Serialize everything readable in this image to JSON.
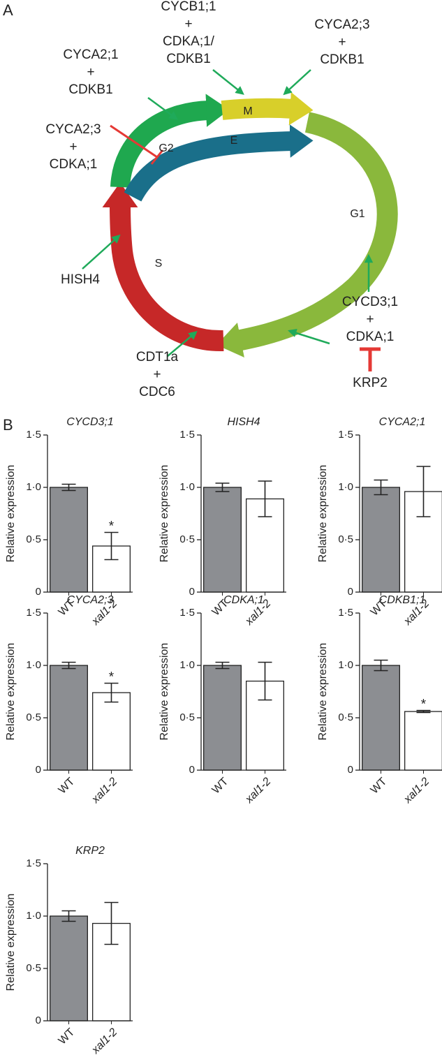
{
  "panel_a": {
    "label": "A",
    "phases": [
      "M",
      "E",
      "G2",
      "G1",
      "S"
    ],
    "labels": [
      {
        "lines": [
          "CYCB1;1",
          "+",
          "CDKA;1/",
          "CDKB1"
        ]
      },
      {
        "lines": [
          "CYCA2;3",
          "+",
          "CDKB1"
        ]
      },
      {
        "lines": [
          "CYCA2;1",
          "+",
          "CDKB1"
        ]
      },
      {
        "lines": [
          "CYCA2;3",
          "+",
          "CDKA;1"
        ]
      },
      {
        "lines": [
          "HISH4"
        ]
      },
      {
        "lines": [
          "CDT1a",
          "+",
          "CDC6"
        ]
      },
      {
        "lines": [
          "CYCD3;1",
          "+",
          "CDKA;1"
        ]
      },
      {
        "lines": [
          "KRP2"
        ]
      }
    ]
  },
  "panel_b": {
    "label": "B"
  },
  "chart_data": [
    {
      "type": "bar",
      "title": "CYCD3;1",
      "y_label": "Relative expression",
      "categories": [
        "WT",
        "xal1-2"
      ],
      "values": [
        1.0,
        0.44
      ],
      "errors": [
        0.03,
        0.13
      ],
      "markers": [
        null,
        "*"
      ],
      "colors": [
        "#8c8e92",
        "#ffffff"
      ],
      "ylim": [
        0,
        1.5
      ],
      "yticks": [
        0,
        {
          "value": 0.5,
          "label": "0·5"
        },
        {
          "value": 1.0,
          "label": "1·0"
        },
        {
          "value": 1.5,
          "label": "1·5"
        }
      ]
    },
    {
      "type": "bar",
      "title": "HISH4",
      "y_label": "Relative expression",
      "categories": [
        "WT",
        "xal1-2"
      ],
      "values": [
        1.0,
        0.89
      ],
      "errors": [
        0.04,
        0.17
      ],
      "markers": [
        null,
        null
      ],
      "colors": [
        "#8c8e92",
        "#ffffff"
      ],
      "ylim": [
        0,
        1.5
      ],
      "yticks": [
        0,
        {
          "value": 0.5,
          "label": "0·5"
        },
        {
          "value": 1.0,
          "label": "1·0"
        },
        {
          "value": 1.5,
          "label": "1·5"
        }
      ]
    },
    {
      "type": "bar",
      "title": "CYCA2;1",
      "y_label": "Relative expression",
      "categories": [
        "WT",
        "xal1-2"
      ],
      "values": [
        1.0,
        0.96
      ],
      "errors": [
        0.07,
        0.24
      ],
      "markers": [
        null,
        null
      ],
      "colors": [
        "#8c8e92",
        "#ffffff"
      ],
      "ylim": [
        0,
        1.5
      ],
      "yticks": [
        0,
        {
          "value": 0.5,
          "label": "0·5"
        },
        {
          "value": 1.0,
          "label": "1·0"
        },
        {
          "value": 1.5,
          "label": "1·5"
        }
      ]
    },
    {
      "type": "bar",
      "title": "CYCA2;3",
      "y_label": "Relative expression",
      "categories": [
        "WT",
        "xal1-2"
      ],
      "values": [
        1.0,
        0.74
      ],
      "errors": [
        0.03,
        0.09
      ],
      "markers": [
        null,
        "*"
      ],
      "colors": [
        "#8c8e92",
        "#ffffff"
      ],
      "ylim": [
        0,
        1.5
      ],
      "yticks": [
        0,
        {
          "value": 0.5,
          "label": "0·5"
        },
        {
          "value": 1.0,
          "label": "1·0"
        },
        {
          "value": 1.5,
          "label": "1·5"
        }
      ]
    },
    {
      "type": "bar",
      "title": "CDKA;1",
      "y_label": "Relative expression",
      "categories": [
        "WT",
        "xal1-2"
      ],
      "values": [
        1.0,
        0.85
      ],
      "errors": [
        0.03,
        0.18
      ],
      "markers": [
        null,
        null
      ],
      "colors": [
        "#8c8e92",
        "#ffffff"
      ],
      "ylim": [
        0,
        1.5
      ],
      "yticks": [
        0,
        {
          "value": 0.5,
          "label": "0·5"
        },
        {
          "value": 1.0,
          "label": "1·0"
        },
        {
          "value": 1.5,
          "label": "1·5"
        }
      ]
    },
    {
      "type": "bar",
      "title": "CDKB1;1",
      "y_label": "Relative expression",
      "categories": [
        "WT",
        "xal1-2"
      ],
      "values": [
        1.0,
        0.56
      ],
      "errors": [
        0.05,
        0.01
      ],
      "markers": [
        null,
        "*"
      ],
      "colors": [
        "#8c8e92",
        "#ffffff"
      ],
      "ylim": [
        0,
        1.5
      ],
      "yticks": [
        0,
        {
          "value": 0.5,
          "label": "0·5"
        },
        {
          "value": 1.0,
          "label": "1·0"
        },
        {
          "value": 1.5,
          "label": "1·5"
        }
      ]
    },
    {
      "type": "bar",
      "title": "KRP2",
      "y_label": "Relative expression",
      "categories": [
        "WT",
        "xal1-2"
      ],
      "values": [
        1.0,
        0.93
      ],
      "errors": [
        0.05,
        0.2
      ],
      "markers": [
        null,
        null
      ],
      "colors": [
        "#8c8e92",
        "#ffffff"
      ],
      "ylim": [
        0,
        1.5
      ],
      "yticks": [
        0,
        {
          "value": 0.5,
          "label": "0·5"
        },
        {
          "value": 1.0,
          "label": "1·0"
        },
        {
          "value": 1.5,
          "label": "1·5"
        }
      ]
    }
  ]
}
